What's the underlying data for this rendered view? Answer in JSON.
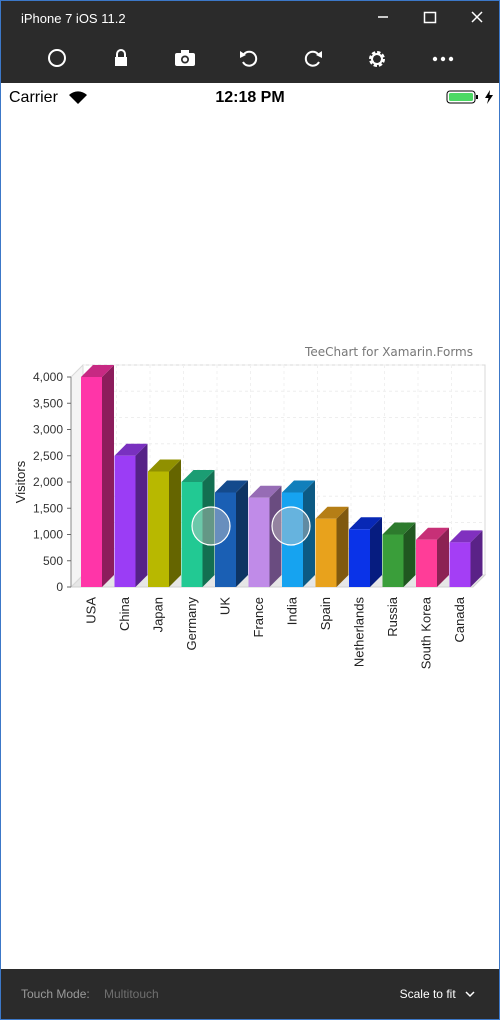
{
  "window": {
    "title": "iPhone 7 iOS 11.2",
    "buttons": [
      "minimize-icon",
      "maximize-icon",
      "close-icon"
    ]
  },
  "toolbar": {
    "icons": [
      "home-icon",
      "lock-icon",
      "camera-icon",
      "rotate-left-icon",
      "rotate-right-icon",
      "settings-icon",
      "more-icon"
    ]
  },
  "status_bar": {
    "carrier": "Carrier",
    "time": "12:18 PM",
    "battery_color": "#4cd964"
  },
  "bottom_bar": {
    "touch_mode_label": "Touch Mode:",
    "touch_mode_value": "Multitouch",
    "scale_label": "Scale to fit"
  },
  "chart_data": {
    "type": "bar",
    "style": "3d",
    "watermark": "TeeChart for Xamarin.Forms",
    "ylabel": "Visitors",
    "xlabel": "",
    "ylim": [
      0,
      4000
    ],
    "yticks": [
      0,
      500,
      1000,
      1500,
      2000,
      2500,
      3000,
      3500,
      4000
    ],
    "ytick_labels": [
      "0",
      "500",
      "1,000",
      "1,500",
      "2,000",
      "2,500",
      "3,000",
      "3,500",
      "4,000"
    ],
    "grid": true,
    "categories": [
      "USA",
      "China",
      "Japan",
      "Germany",
      "UK",
      "France",
      "India",
      "Spain",
      "Netherlands",
      "Russia",
      "South Korea",
      "Canada"
    ],
    "values": [
      4000,
      2500,
      2200,
      2000,
      1800,
      1700,
      1800,
      1300,
      1100,
      1000,
      900,
      850
    ],
    "colors": [
      "#ff35a8",
      "#9b3df5",
      "#b8b800",
      "#22c993",
      "#1a5fb4",
      "#c08be8",
      "#16a3f0",
      "#e8a21c",
      "#0a33e8",
      "#3a9e3a",
      "#ff3d98",
      "#a43ef5"
    ],
    "touch_points": 2
  }
}
